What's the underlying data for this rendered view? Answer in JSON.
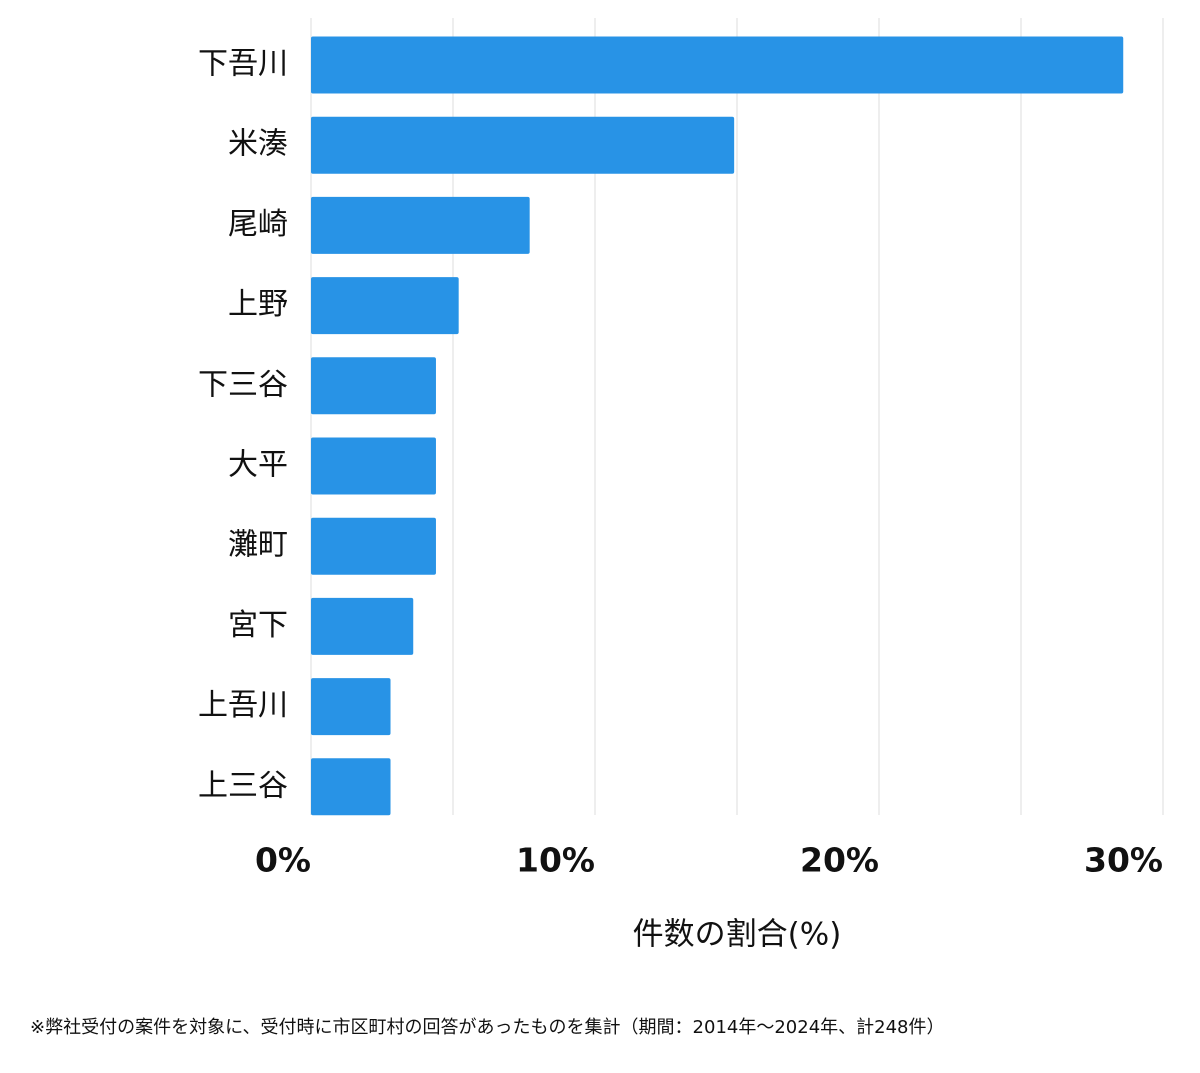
{
  "chart_data": {
    "type": "barh",
    "categories": [
      "下吾川",
      "米湊",
      "尾崎",
      "上野",
      "下三谷",
      "大平",
      "灘町",
      "宮下",
      "上吾川",
      "上三谷"
    ],
    "values": [
      28.6,
      14.9,
      7.7,
      5.2,
      4.4,
      4.4,
      4.4,
      3.6,
      2.8,
      2.8
    ],
    "color": "#2893e6",
    "xlim": [
      0,
      30
    ],
    "xticks": [
      {
        "value": 0,
        "label": "0%"
      },
      {
        "value": 10,
        "label": "10%"
      },
      {
        "value": 20,
        "label": "20%"
      },
      {
        "value": 30,
        "label": "30%"
      }
    ],
    "xminorticks": [
      5,
      15,
      25
    ],
    "grid": true,
    "xlabel": "件数の割合(%)",
    "note": "※弊社受付の案件を対象に、受付時に市区町村の回答があったものを集計（期間：2014年〜2024年、計248件）"
  }
}
